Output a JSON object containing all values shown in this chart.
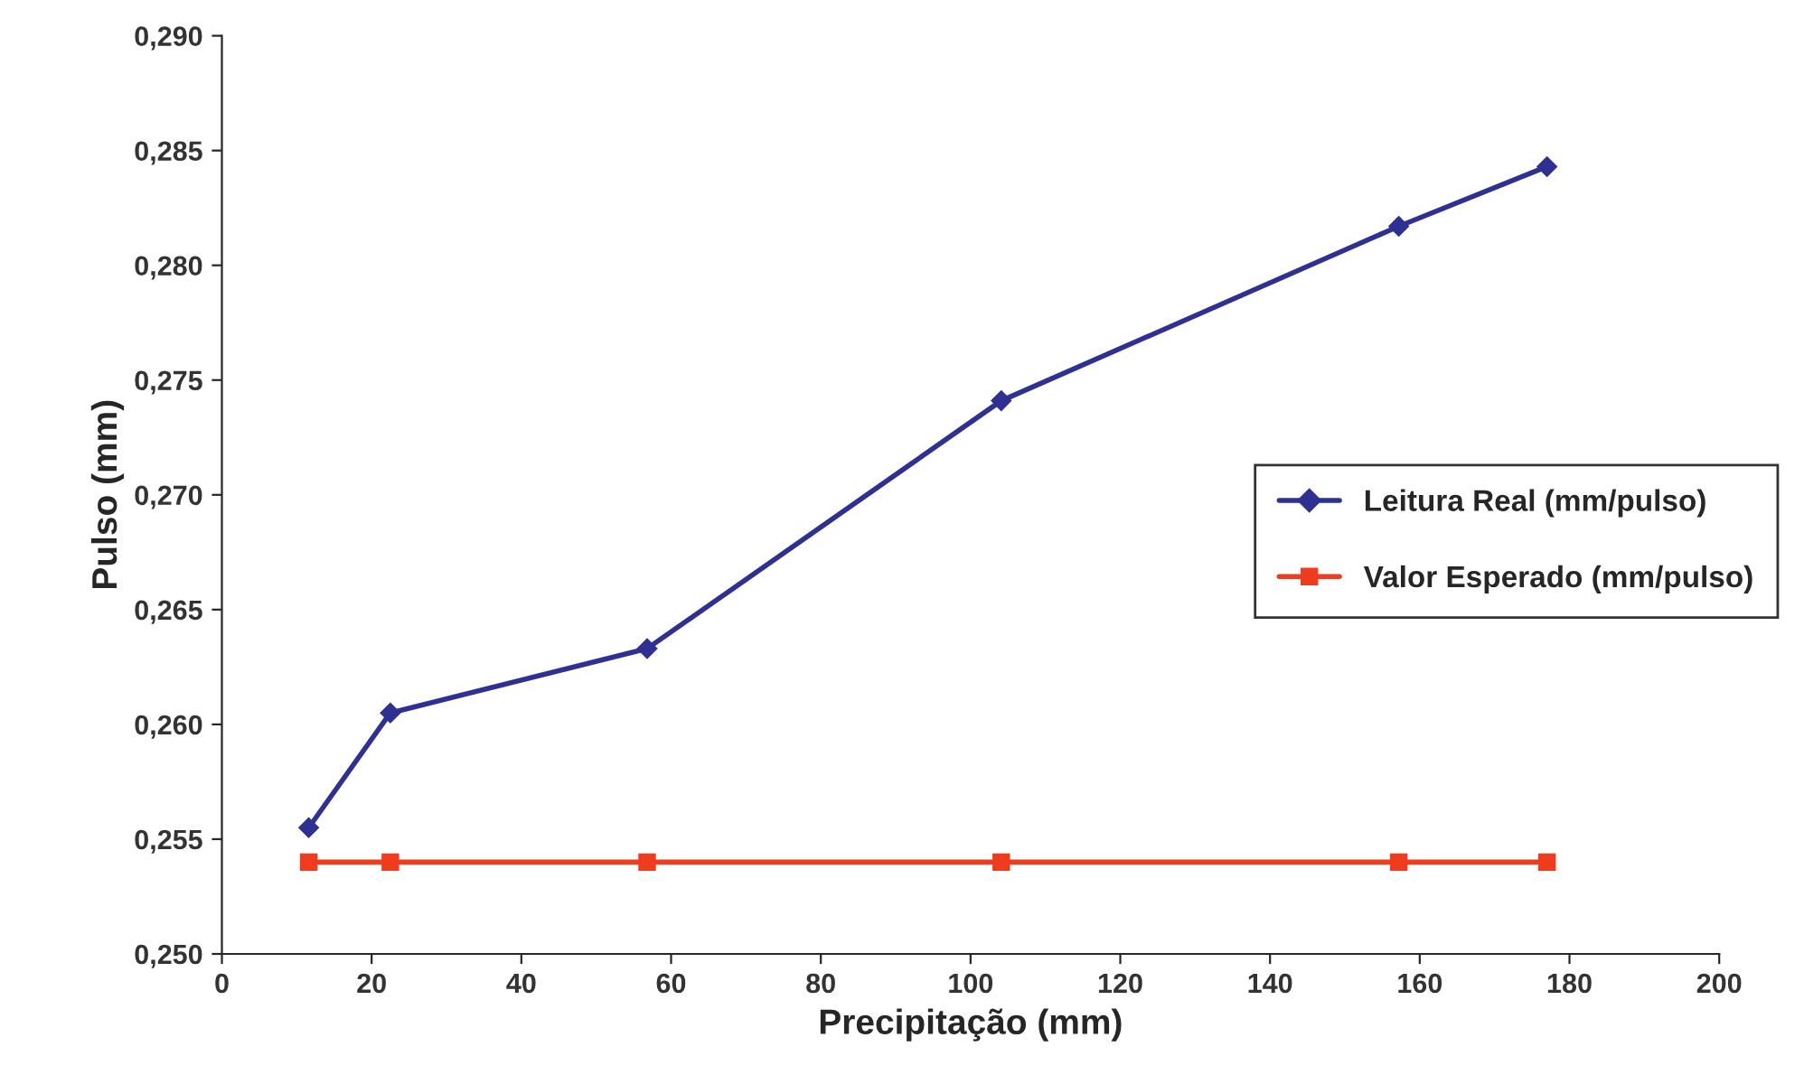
{
  "chart_data": {
    "type": "line",
    "xlabel": "Precipitação (mm)",
    "ylabel": "Pulso (mm)",
    "x": [
      11.6,
      22.5,
      56.8,
      104.1,
      157.2,
      177
    ],
    "series": [
      {
        "name": "Leitura Real (mm/pulso)",
        "color": "#2e3192",
        "marker": "diamond",
        "values": [
          0.2555,
          0.2605,
          0.2633,
          0.2741,
          0.2817,
          0.2843
        ]
      },
      {
        "name": "Valor Esperado (mm/pulso)",
        "color": "#f03c1e",
        "marker": "square",
        "values": [
          0.254,
          0.254,
          0.254,
          0.254,
          0.254,
          0.254
        ]
      }
    ],
    "xlim": [
      0,
      200
    ],
    "xticks": [
      0,
      20,
      40,
      60,
      80,
      100,
      120,
      140,
      160,
      180,
      200
    ],
    "ylim": [
      0.25,
      0.29
    ],
    "yticks": [
      {
        "value": 0.25,
        "label": "0,250"
      },
      {
        "value": 0.255,
        "label": "0,255"
      },
      {
        "value": 0.26,
        "label": "0,260"
      },
      {
        "value": 0.265,
        "label": "0,265"
      },
      {
        "value": 0.27,
        "label": "0,270"
      },
      {
        "value": 0.275,
        "label": "0,275"
      },
      {
        "value": 0.28,
        "label": "0,280"
      },
      {
        "value": 0.285,
        "label": "0,285"
      },
      {
        "value": 0.29,
        "label": "0,290"
      }
    ],
    "legend": "right",
    "grid": false
  }
}
